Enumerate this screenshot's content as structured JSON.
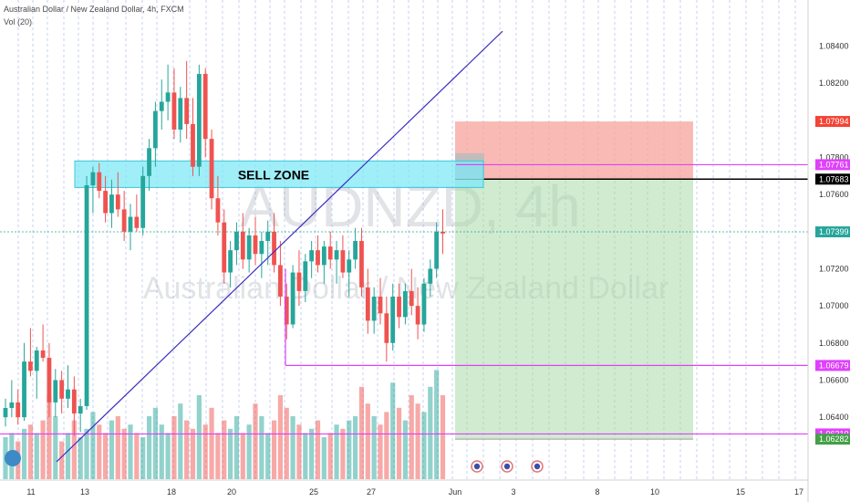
{
  "header": {
    "symbol_line": "Australian Dollar / New Zealand Dollar, 4h, FXCM",
    "volume_line": "Vol (20)"
  },
  "watermark": {
    "ticker": "AUDNZD, 4h",
    "name": "Australian Dollar / New Zealand Dollar"
  },
  "annotations": {
    "sell_zone_label": "SELL ZONE"
  },
  "colors": {
    "up": "#26a69a",
    "down": "#ef5350",
    "magenta": "#e040fb",
    "trend": "#3f2fbf",
    "zone": "#7fe8f5",
    "stop": "#f7a39c",
    "target": "#a9dba8"
  },
  "chart_data": {
    "type": "candlestick",
    "timeframe": "4h",
    "y_axis_ticks": [
      "1.08400",
      "1.08200",
      "1.07994",
      "1.07800",
      "1.07761",
      "1.07683",
      "1.07600",
      "1.07399",
      "1.07200",
      "1.07000",
      "1.06800",
      "1.06679",
      "1.06600",
      "1.06400",
      "1.06310",
      "1.06282"
    ],
    "x_axis_ticks": [
      "11",
      "13",
      "18",
      "20",
      "25",
      "27",
      "Jun",
      "3",
      "8",
      "10",
      "15",
      "17"
    ],
    "ylim": [
      1.0614,
      1.0855
    ],
    "last_price": 1.07399,
    "price_tags": [
      {
        "label": "1.07994",
        "value": 1.07994,
        "style": "stop"
      },
      {
        "label": "1.07761",
        "value": 1.07761,
        "style": "magenta"
      },
      {
        "label": "1.07683",
        "value": 1.07683,
        "style": "entry"
      },
      {
        "label": "1.07399",
        "value": 1.07399,
        "style": "last"
      },
      {
        "label": "1.06679",
        "value": 1.06679,
        "style": "magenta"
      },
      {
        "label": "1.06310",
        "value": 1.0631,
        "style": "magenta"
      },
      {
        "label": "1.06282",
        "value": 1.06282,
        "style": "target"
      }
    ],
    "horizontal_levels": [
      {
        "value": 1.07761,
        "color": "magenta"
      },
      {
        "value": 1.06679,
        "color": "magenta"
      },
      {
        "value": 1.0631,
        "color": "magenta"
      }
    ],
    "sell_zone": {
      "low": 1.07683,
      "high": 1.07761
    },
    "short_position": {
      "entry": 1.07683,
      "stop": 1.07994,
      "target": 1.06282
    },
    "trend_line": {
      "from": [
        0,
        1.0616
      ],
      "to": [
        83,
        1.0848
      ]
    },
    "candles": [
      [
        1.064,
        1.065,
        1.0635,
        1.0645
      ],
      [
        1.0645,
        1.066,
        1.064,
        1.0648
      ],
      [
        1.0648,
        1.0655,
        1.0636,
        1.064
      ],
      [
        1.064,
        1.068,
        1.0638,
        1.067
      ],
      [
        1.067,
        1.0688,
        1.0662,
        1.0665
      ],
      [
        1.0665,
        1.0678,
        1.065,
        1.0676
      ],
      [
        1.0676,
        1.069,
        1.067,
        1.0672
      ],
      [
        1.0672,
        1.068,
        1.064,
        1.0648
      ],
      [
        1.0648,
        1.0666,
        1.064,
        1.066
      ],
      [
        1.066,
        1.0665,
        1.0642,
        1.065
      ],
      [
        1.065,
        1.0668,
        1.0645,
        1.0655
      ],
      [
        1.0655,
        1.0662,
        1.063,
        1.0642
      ],
      [
        1.0642,
        1.065,
        1.0632,
        1.0646
      ],
      [
        1.0646,
        1.077,
        1.0644,
        1.0765
      ],
      [
        1.0765,
        1.0775,
        1.075,
        1.0772
      ],
      [
        1.0772,
        1.0777,
        1.0758,
        1.0762
      ],
      [
        1.0762,
        1.077,
        1.0745,
        1.075
      ],
      [
        1.075,
        1.0768,
        1.0742,
        1.076
      ],
      [
        1.076,
        1.0772,
        1.0748,
        1.0752
      ],
      [
        1.0752,
        1.0762,
        1.0735,
        1.074
      ],
      [
        1.074,
        1.0755,
        1.073,
        1.0748
      ],
      [
        1.0748,
        1.076,
        1.074,
        1.0742
      ],
      [
        1.0742,
        1.0775,
        1.0738,
        1.077
      ],
      [
        1.077,
        1.079,
        1.0762,
        1.0785
      ],
      [
        1.0785,
        1.081,
        1.0775,
        1.0805
      ],
      [
        1.0805,
        1.0822,
        1.0795,
        1.081
      ],
      [
        1.081,
        1.083,
        1.08,
        1.0815
      ],
      [
        1.0815,
        1.0828,
        1.079,
        1.0795
      ],
      [
        1.0795,
        1.0818,
        1.0788,
        1.0812
      ],
      [
        1.0812,
        1.0832,
        1.079,
        1.0798
      ],
      [
        1.0798,
        1.0812,
        1.077,
        1.0775
      ],
      [
        1.0775,
        1.083,
        1.077,
        1.0825
      ],
      [
        1.0825,
        1.0828,
        1.078,
        1.079
      ],
      [
        1.079,
        1.0795,
        1.0752,
        1.0758
      ],
      [
        1.0758,
        1.077,
        1.0738,
        1.0745
      ],
      [
        1.0745,
        1.0752,
        1.0712,
        1.0718
      ],
      [
        1.0718,
        1.0735,
        1.071,
        1.073
      ],
      [
        1.073,
        1.0745,
        1.0722,
        1.074
      ],
      [
        1.074,
        1.075,
        1.072,
        1.0725
      ],
      [
        1.0725,
        1.0742,
        1.0718,
        1.0738
      ],
      [
        1.0738,
        1.0748,
        1.0722,
        1.0728
      ],
      [
        1.0728,
        1.074,
        1.0715,
        1.0735
      ],
      [
        1.0735,
        1.0746,
        1.0722,
        1.074
      ],
      [
        1.074,
        1.075,
        1.0718,
        1.0722
      ],
      [
        1.0722,
        1.0735,
        1.07,
        1.0705
      ],
      [
        1.0705,
        1.0712,
        1.0682,
        1.069
      ],
      [
        1.069,
        1.0722,
        1.0688,
        1.0718
      ],
      [
        1.0718,
        1.073,
        1.07,
        1.0708
      ],
      [
        1.0708,
        1.0728,
        1.0702,
        1.0724
      ],
      [
        1.0724,
        1.0735,
        1.0715,
        1.073
      ],
      [
        1.073,
        1.0738,
        1.0718,
        1.0722
      ],
      [
        1.0722,
        1.0735,
        1.0712,
        1.0732
      ],
      [
        1.0732,
        1.074,
        1.072,
        1.0725
      ],
      [
        1.0725,
        1.0735,
        1.0712,
        1.073
      ],
      [
        1.073,
        1.0738,
        1.0715,
        1.0718
      ],
      [
        1.0718,
        1.073,
        1.0705,
        1.0725
      ],
      [
        1.0725,
        1.0742,
        1.072,
        1.0735
      ],
      [
        1.0735,
        1.0742,
        1.0705,
        1.071
      ],
      [
        1.071,
        1.072,
        1.0685,
        1.0692
      ],
      [
        1.0692,
        1.071,
        1.0685,
        1.0705
      ],
      [
        1.0705,
        1.0715,
        1.069,
        1.0696
      ],
      [
        1.0696,
        1.0705,
        1.067,
        1.068
      ],
      [
        1.068,
        1.0712,
        1.0676,
        1.0705
      ],
      [
        1.0705,
        1.0712,
        1.0688,
        1.0694
      ],
      [
        1.0694,
        1.0712,
        1.069,
        1.0708
      ],
      [
        1.0708,
        1.072,
        1.0695,
        1.07
      ],
      [
        1.07,
        1.071,
        1.0682,
        1.069
      ],
      [
        1.069,
        1.0715,
        1.0686,
        1.0712
      ],
      [
        1.0712,
        1.0725,
        1.0705,
        1.072
      ],
      [
        1.072,
        1.0745,
        1.0715,
        1.074
      ],
      [
        1.074,
        1.0752,
        1.0728,
        1.0739
      ]
    ],
    "volumes": [
      0.2,
      0.22,
      0.18,
      0.24,
      0.26,
      0.22,
      0.28,
      0.4,
      0.3,
      0.18,
      0.22,
      0.28,
      0.2,
      0.24,
      0.32,
      0.26,
      0.22,
      0.28,
      0.3,
      0.24,
      0.26,
      0.22,
      0.2,
      0.3,
      0.34,
      0.26,
      0.22,
      0.3,
      0.36,
      0.28,
      0.24,
      0.4,
      0.26,
      0.34,
      0.22,
      0.28,
      0.24,
      0.3,
      0.22,
      0.26,
      0.36,
      0.3,
      0.22,
      0.28,
      0.4,
      0.34,
      0.3,
      0.26,
      0.22,
      0.24,
      0.28,
      0.2,
      0.22,
      0.26,
      0.24,
      0.28,
      0.3,
      0.44,
      0.36,
      0.3,
      0.26,
      0.32,
      0.46,
      0.34,
      0.28,
      0.4,
      0.36,
      0.32,
      0.44,
      0.52,
      0.4
    ]
  }
}
